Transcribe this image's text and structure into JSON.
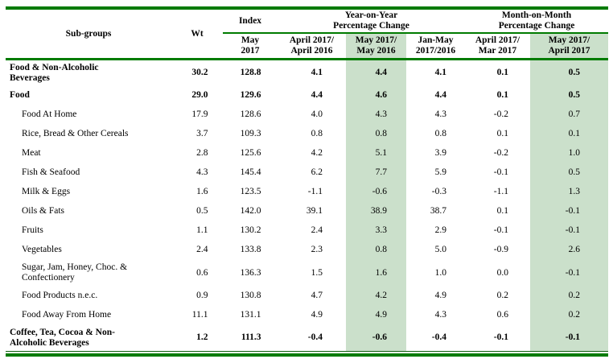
{
  "table": {
    "colors": {
      "rule_green": "#007b00",
      "highlight_green": "#cbe0cb"
    },
    "columns": {
      "subgroups": "Sub-groups",
      "wt": "Wt",
      "index_group": "Index",
      "index_sub": "May\n2017",
      "yoy_group": "Year-on-Year\nPercentage Change",
      "mom_group": "Month-on-Month\nPercentage Change",
      "yoy_sub": [
        "April 2017/\nApril 2016",
        "May 2017/\nMay 2016",
        "Jan-May\n2017/2016"
      ],
      "mom_sub": [
        "April 2017/\nMar 2017",
        "May 2017/\nApril 2017"
      ]
    },
    "value_columns": [
      "Wt",
      "Index May 2017",
      "YoY April 2017/April 2016",
      "YoY May 2017/May 2016",
      "YoY Jan-May 2017/2016",
      "MoM April 2017/Mar 2017",
      "MoM May 2017/April 2017"
    ],
    "rows": [
      {
        "name": "Food & Non-Alcoholic\nBeverages",
        "bold": true,
        "indent": false,
        "two_line": true,
        "values": [
          "30.2",
          "128.8",
          "4.1",
          "4.4",
          "4.1",
          "0.1",
          "0.5"
        ]
      },
      {
        "name": "Food",
        "bold": true,
        "indent": false,
        "two_line": false,
        "values": [
          "29.0",
          "129.6",
          "4.4",
          "4.6",
          "4.4",
          "0.1",
          "0.5"
        ]
      },
      {
        "name": "Food At Home",
        "bold": false,
        "indent": true,
        "two_line": false,
        "values": [
          "17.9",
          "128.6",
          "4.0",
          "4.3",
          "4.3",
          "-0.2",
          "0.7"
        ]
      },
      {
        "name": "Rice, Bread & Other Cereals",
        "bold": false,
        "indent": true,
        "two_line": false,
        "values": [
          "3.7",
          "109.3",
          "0.8",
          "0.8",
          "0.8",
          "0.1",
          "0.1"
        ]
      },
      {
        "name": "Meat",
        "bold": false,
        "indent": true,
        "two_line": false,
        "values": [
          "2.8",
          "125.6",
          "4.2",
          "5.1",
          "3.9",
          "-0.2",
          "1.0"
        ]
      },
      {
        "name": "Fish & Seafood",
        "bold": false,
        "indent": true,
        "two_line": false,
        "values": [
          "4.3",
          "145.4",
          "6.2",
          "7.7",
          "5.9",
          "-0.1",
          "0.5"
        ]
      },
      {
        "name": "Milk & Eggs",
        "bold": false,
        "indent": true,
        "two_line": false,
        "values": [
          "1.6",
          "123.5",
          "-1.1",
          "-0.6",
          "-0.3",
          "-1.1",
          "1.3"
        ]
      },
      {
        "name": "Oils & Fats",
        "bold": false,
        "indent": true,
        "two_line": false,
        "values": [
          "0.5",
          "142.0",
          "39.1",
          "38.9",
          "38.7",
          "0.1",
          "-0.1"
        ]
      },
      {
        "name": "Fruits",
        "bold": false,
        "indent": true,
        "two_line": false,
        "values": [
          "1.1",
          "130.2",
          "2.4",
          "3.3",
          "2.9",
          "-0.1",
          "-0.1"
        ]
      },
      {
        "name": "Vegetables",
        "bold": false,
        "indent": true,
        "two_line": false,
        "values": [
          "2.4",
          "133.8",
          "2.3",
          "0.8",
          "5.0",
          "-0.9",
          "2.6"
        ]
      },
      {
        "name": "Sugar, Jam, Honey, Choc. &\nConfectionery",
        "bold": false,
        "indent": true,
        "two_line": true,
        "values": [
          "0.6",
          "136.3",
          "1.5",
          "1.6",
          "1.0",
          "0.0",
          "-0.1"
        ]
      },
      {
        "name": "Food Products n.e.c.",
        "bold": false,
        "indent": true,
        "two_line": false,
        "values": [
          "0.9",
          "130.8",
          "4.7",
          "4.2",
          "4.9",
          "0.2",
          "0.2"
        ]
      },
      {
        "name": "Food Away From Home",
        "bold": false,
        "indent": true,
        "two_line": false,
        "values": [
          "11.1",
          "131.1",
          "4.9",
          "4.9",
          "4.3",
          "0.6",
          "0.2"
        ]
      },
      {
        "name": "Coffee, Tea, Cocoa & Non-\nAlcoholic Beverages",
        "bold": true,
        "indent": false,
        "two_line": true,
        "values": [
          "1.2",
          "111.3",
          "-0.4",
          "-0.6",
          "-0.4",
          "-0.1",
          "-0.1"
        ]
      }
    ]
  }
}
